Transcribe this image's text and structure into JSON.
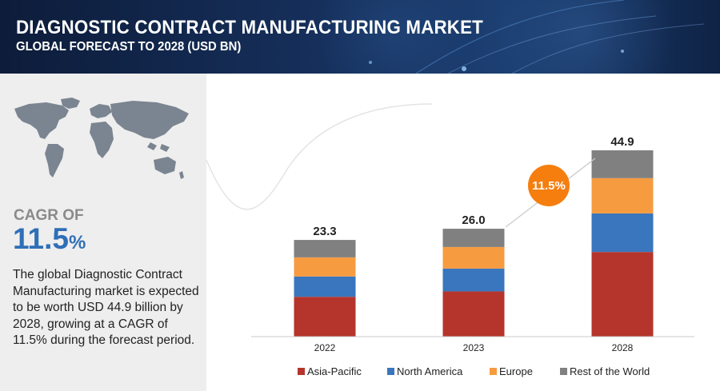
{
  "header": {
    "title": "DIAGNOSTIC CONTRACT MANUFACTURING MARKET",
    "subtitle": "GLOBAL FORECAST TO 2028 (USD BN)"
  },
  "left_panel": {
    "cagr_label": "CAGR OF",
    "cagr_number": "11.5",
    "cagr_unit": "%",
    "description": "The global Diagnostic Contract Manufacturing market is expected to be worth USD 44.9 billion by 2028, growing at a CAGR of 11.5% during the forecast period."
  },
  "colors": {
    "header_bg": "#14284d",
    "accent_blue": "#2f6fb7",
    "badge_orange": "#f57e0f"
  },
  "chart_data": {
    "type": "bar",
    "stacked": true,
    "categories": [
      "2022",
      "2023",
      "2028"
    ],
    "totals": [
      23.3,
      26.0,
      44.9
    ],
    "total_labels": [
      "23.3",
      "26.0",
      "44.9"
    ],
    "series": [
      {
        "name": "Asia-Pacific",
        "color": "#b5352c",
        "values": [
          9.6,
          10.9,
          20.4
        ]
      },
      {
        "name": "North America",
        "color": "#3a76bd",
        "values": [
          4.9,
          5.5,
          9.3
        ]
      },
      {
        "name": "Europe",
        "color": "#f79b40",
        "values": [
          4.6,
          5.2,
          8.5
        ]
      },
      {
        "name": "Rest of the World",
        "color": "#808080",
        "values": [
          4.2,
          4.4,
          6.7
        ]
      }
    ],
    "cagr_badge": "11.5%",
    "ylim": [
      0,
      50
    ],
    "legend_position": "bottom"
  }
}
